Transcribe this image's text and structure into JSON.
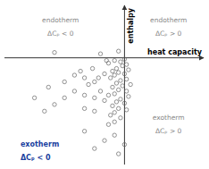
{
  "chart_data": {
    "type": "scatter",
    "x_label": "heat capacity",
    "y_label": "enthalpy",
    "xlim": [
      -6,
      4
    ],
    "ylim": [
      -8,
      4
    ],
    "tick_labels": false,
    "grid": false,
    "color": "#666666",
    "marker": "circle",
    "x": [
      -0.3,
      -1.2,
      -3.5,
      -0.5,
      -0.2,
      0.0,
      -0.8,
      0.1,
      -0.1,
      -0.4,
      0.2,
      -0.6,
      -0.3,
      0.0,
      -0.5,
      -0.7,
      0.1,
      -0.2,
      -0.4,
      -0.1,
      0.3,
      -0.6,
      -0.3,
      0.1,
      -0.5,
      -0.8,
      0.2,
      -0.2,
      -0.4,
      0.0,
      -0.6,
      -0.3,
      0.1,
      -0.5,
      -0.7,
      -0.2,
      -1.0,
      -1.3,
      -1.5,
      -1.8,
      -2.0,
      -2.2,
      -1.6,
      -2.5,
      -3.0,
      -1.2,
      -1.5,
      -2.0,
      -2.5,
      -3.0,
      -3.5,
      -2.0,
      -1.0,
      -1.5,
      -0.8,
      -0.5,
      -1.0,
      -1.5,
      -0.3,
      0.0,
      -2.0,
      -0.5,
      -3.8,
      -4.5,
      -4.0,
      -0.9
    ],
    "values": [
      0.5,
      0.3,
      0.4,
      -0.2,
      -0.3,
      -0.1,
      -0.4,
      -0.5,
      -0.6,
      -0.8,
      -0.9,
      -1.0,
      -1.1,
      -1.2,
      -1.3,
      -1.5,
      -1.6,
      -1.7,
      -1.9,
      -2.1,
      -2.0,
      -2.2,
      -2.4,
      -2.5,
      -2.7,
      -2.8,
      -2.9,
      -3.1,
      -3.3,
      -3.4,
      -3.6,
      -3.8,
      -3.9,
      -4.1,
      -4.3,
      -4.5,
      -1.2,
      -1.5,
      -1.8,
      -2.0,
      -1.5,
      -1.0,
      -0.8,
      -1.3,
      -1.8,
      -2.5,
      -3.0,
      -2.8,
      -2.5,
      -3.0,
      -3.5,
      -3.8,
      -3.2,
      -4.0,
      -5.0,
      -5.8,
      -6.2,
      -6.8,
      -7.2,
      -6.5,
      -5.5,
      -4.8,
      -2.2,
      -3.0,
      -4.0,
      -0.2
    ],
    "annotations": [
      {
        "text": "endotherm",
        "color": "#888888"
      },
      {
        "text": "ΔCₚ < 0",
        "color": "#888888"
      },
      {
        "text": "endotherm",
        "color": "#888888"
      },
      {
        "text": "ΔCₚ > 0",
        "color": "#888888"
      },
      {
        "text": "exotherm",
        "color": "#888888"
      },
      {
        "text": "ΔCₚ > 0",
        "color": "#888888"
      },
      {
        "text": "exotherm",
        "color": "#1a3fa0"
      },
      {
        "text": "ΔCₚ < 0",
        "color": "#1a3fa0"
      }
    ]
  }
}
